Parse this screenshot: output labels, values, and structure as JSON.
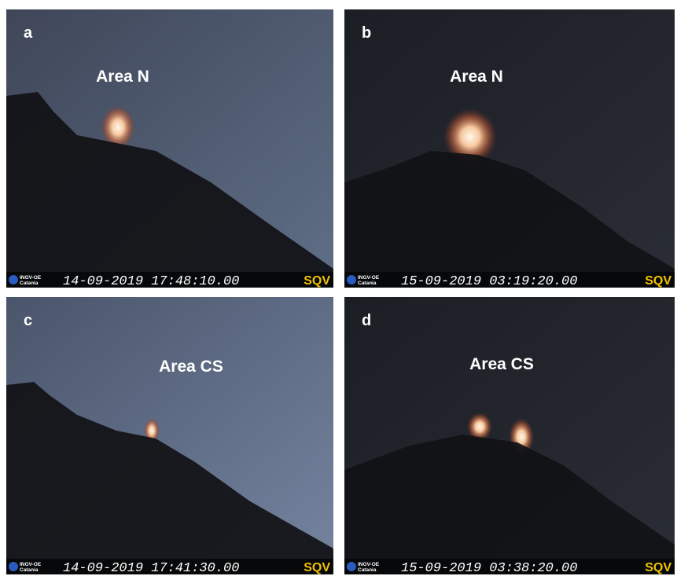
{
  "panels": [
    {
      "letter": "a",
      "label": "Area N",
      "logo": "INGV-OE",
      "logo_sub": "Catania",
      "timestamp": "14-09-2019  17:48:10.00",
      "station": "SQV"
    },
    {
      "letter": "b",
      "label": "Area N",
      "logo": "INGV-OE",
      "logo_sub": "Catania",
      "timestamp": "15-09-2019  03:19:20.00",
      "station": "SQV"
    },
    {
      "letter": "c",
      "label": "Area CS",
      "logo": "INGV-OE",
      "logo_sub": "Catania",
      "timestamp": "14-09-2019  17:41:30.00",
      "station": "SQV"
    },
    {
      "letter": "d",
      "label": "Area CS",
      "logo": "INGV-OE",
      "logo_sub": "Catania",
      "timestamp": "15-09-2019  03:38:20.00",
      "station": "SQV"
    }
  ]
}
